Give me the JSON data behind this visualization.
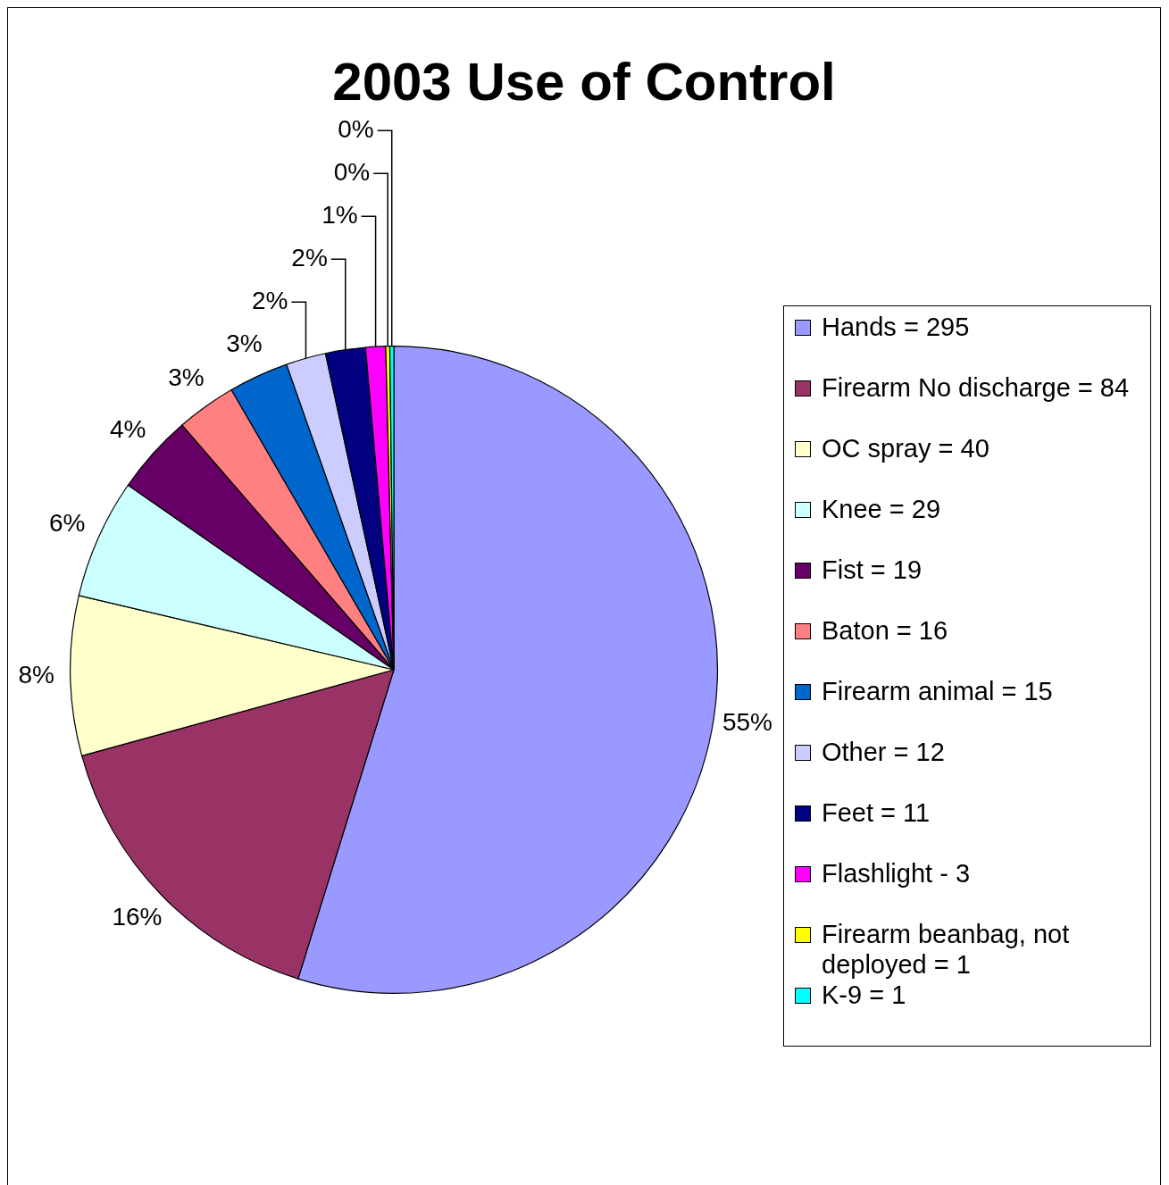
{
  "chart_data": {
    "type": "pie",
    "title": "2003 Use of Control",
    "categories": [
      "Hands =  295",
      "Firearm No discharge = 84",
      "OC spray = 40",
      "Knee = 29",
      "Fist = 19",
      "Baton = 16",
      "Firearm animal = 15",
      "Other = 12",
      "Feet = 11",
      "Flashlight - 3",
      "Firearm beanbag, not deployed = 1",
      "K-9 = 1"
    ],
    "values": [
      55,
      16,
      8,
      6,
      4,
      3,
      3,
      2,
      2,
      1,
      0.2,
      0.2
    ],
    "colors": [
      "#9999ff",
      "#993366",
      "#ffffcc",
      "#ccffff",
      "#660066",
      "#ff8080",
      "#0066cc",
      "#ccccff",
      "#000080",
      "#ff00ff",
      "#ffff00",
      "#00ffff"
    ],
    "value_labels": [
      "55%",
      "16%",
      "8%",
      "6%",
      "4%",
      "3%",
      "3%",
      "2%",
      "2%",
      "1%",
      "0%",
      "0%"
    ],
    "legend": "right"
  }
}
